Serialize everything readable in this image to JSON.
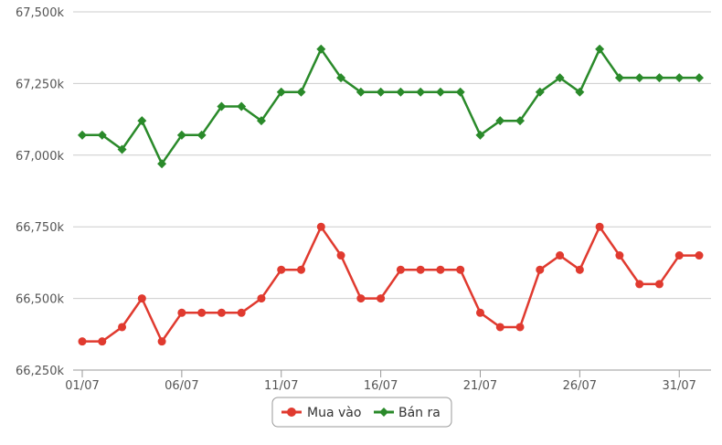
{
  "chart_data": {
    "type": "line",
    "x": [
      "01/07",
      "02/07",
      "03/07",
      "04/07",
      "05/07",
      "06/07",
      "07/07",
      "08/07",
      "09/07",
      "10/07",
      "11/07",
      "12/07",
      "13/07",
      "14/07",
      "15/07",
      "16/07",
      "17/07",
      "18/07",
      "19/07",
      "20/07",
      "21/07",
      "22/07",
      "23/07",
      "24/07",
      "25/07",
      "26/07",
      "27/07",
      "28/07",
      "29/07",
      "30/07",
      "31/07",
      "01/08"
    ],
    "x_tick_labels": [
      "01/07",
      "06/07",
      "11/07",
      "16/07",
      "21/07",
      "26/07",
      "31/07"
    ],
    "y_tick_labels": [
      "66,250k",
      "66,500k",
      "66,750k",
      "67,000k",
      "67,250k",
      "67,500k"
    ],
    "y_ticks": [
      66250,
      66500,
      66750,
      67000,
      67250,
      67500
    ],
    "ylim": [
      66250,
      67500
    ],
    "grid": true,
    "legend_position": "bottom-center",
    "series": [
      {
        "name": "Mua vào",
        "color": "#e03a2f",
        "marker": "circle",
        "values": [
          66350,
          66350,
          66400,
          66500,
          66350,
          66450,
          66450,
          66450,
          66450,
          66500,
          66600,
          66600,
          66750,
          66650,
          66500,
          66500,
          66600,
          66600,
          66600,
          66600,
          66450,
          66400,
          66400,
          66600,
          66650,
          66600,
          66750,
          66650,
          66550,
          66550,
          66650,
          66650
        ]
      },
      {
        "name": "Bán ra",
        "color": "#2a8a2a",
        "marker": "diamond",
        "values": [
          67070,
          67070,
          67020,
          67120,
          66970,
          67070,
          67070,
          67170,
          67170,
          67120,
          67220,
          67220,
          67370,
          67270,
          67220,
          67220,
          67220,
          67220,
          67220,
          67220,
          67070,
          67120,
          67120,
          67220,
          67270,
          67220,
          67370,
          67270,
          67270,
          67270,
          67270,
          67270
        ]
      }
    ]
  }
}
